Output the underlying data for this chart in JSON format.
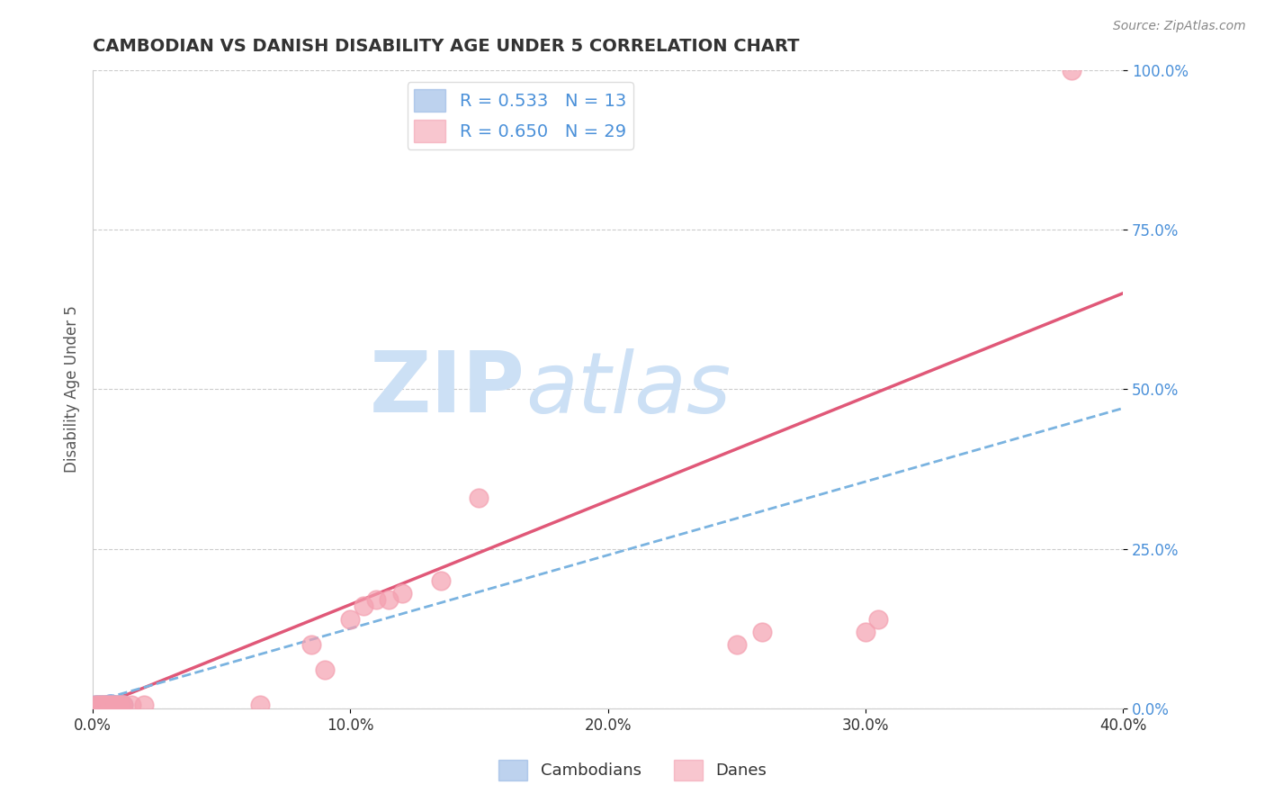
{
  "title": "CAMBODIAN VS DANISH DISABILITY AGE UNDER 5 CORRELATION CHART",
  "source_text": "Source: ZipAtlas.com",
  "ylabel": "Disability Age Under 5",
  "xlim": [
    0.0,
    0.4
  ],
  "ylim": [
    0.0,
    1.0
  ],
  "xtick_labels": [
    "0.0%",
    "10.0%",
    "20.0%",
    "30.0%",
    "40.0%"
  ],
  "xtick_vals": [
    0.0,
    0.1,
    0.2,
    0.3,
    0.4
  ],
  "ytick_labels": [
    "0.0%",
    "25.0%",
    "50.0%",
    "75.0%",
    "100.0%"
  ],
  "ytick_vals": [
    0.0,
    0.25,
    0.5,
    0.75,
    1.0
  ],
  "cambodian_color": "#92b4e3",
  "dane_color": "#f4a0b0",
  "cambodian_R": 0.533,
  "cambodian_N": 13,
  "dane_R": 0.65,
  "dane_N": 29,
  "cambodian_points": [
    [
      0.001,
      0.005
    ],
    [
      0.002,
      0.005
    ],
    [
      0.003,
      0.005
    ],
    [
      0.004,
      0.005
    ],
    [
      0.005,
      0.005
    ],
    [
      0.006,
      0.005
    ],
    [
      0.007,
      0.005
    ],
    [
      0.007,
      0.007
    ],
    [
      0.008,
      0.005
    ],
    [
      0.009,
      0.005
    ],
    [
      0.01,
      0.005
    ],
    [
      0.011,
      0.005
    ],
    [
      0.012,
      0.005
    ]
  ],
  "dane_points": [
    [
      0.001,
      0.005
    ],
    [
      0.002,
      0.005
    ],
    [
      0.003,
      0.005
    ],
    [
      0.004,
      0.005
    ],
    [
      0.005,
      0.005
    ],
    [
      0.006,
      0.005
    ],
    [
      0.007,
      0.005
    ],
    [
      0.008,
      0.005
    ],
    [
      0.009,
      0.005
    ],
    [
      0.01,
      0.005
    ],
    [
      0.011,
      0.005
    ],
    [
      0.012,
      0.005
    ],
    [
      0.015,
      0.005
    ],
    [
      0.02,
      0.005
    ],
    [
      0.065,
      0.005
    ],
    [
      0.085,
      0.1
    ],
    [
      0.09,
      0.06
    ],
    [
      0.1,
      0.14
    ],
    [
      0.105,
      0.16
    ],
    [
      0.11,
      0.17
    ],
    [
      0.115,
      0.17
    ],
    [
      0.12,
      0.18
    ],
    [
      0.135,
      0.2
    ],
    [
      0.15,
      0.33
    ],
    [
      0.25,
      0.1
    ],
    [
      0.26,
      0.12
    ],
    [
      0.3,
      0.12
    ],
    [
      0.305,
      0.14
    ],
    [
      0.38,
      1.0
    ]
  ],
  "dane_trendline_x": [
    0.0,
    0.4
  ],
  "dane_trendline_y": [
    0.0,
    0.65
  ],
  "cam_trendline_x": [
    0.0,
    0.4
  ],
  "cam_trendline_y": [
    0.01,
    0.47
  ],
  "watermark_text": "ZIPatlas",
  "watermark_color": "#cce0f5",
  "background_color": "#ffffff",
  "grid_color": "#cccccc",
  "title_color": "#333333",
  "axis_label_color": "#555555",
  "tick_label_color_x": "#333333",
  "tick_label_color_y": "#4a90d9",
  "legend_label_color": "#4a90d9"
}
